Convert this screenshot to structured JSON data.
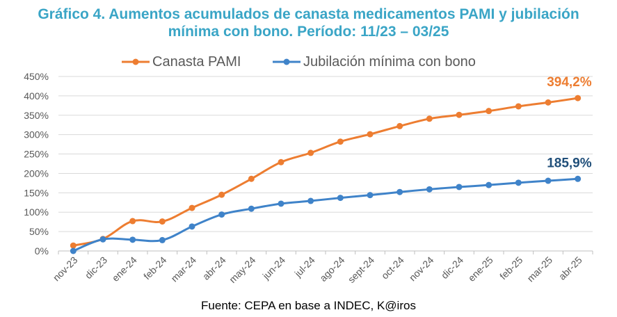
{
  "title_line1": "Gráfico 4. Aumentos acumulados de canasta medicamentos PAMI y jubilación",
  "title_line2": "mínima con bono. Período: 11/23 – 03/25",
  "source": "Fuente: CEPA en base a INDEC, K@iros",
  "colors": {
    "title": "#3AA5C6",
    "pami": "#ED7D31",
    "jubilacion": "#3F83C9",
    "jub_label": "#1F4E79",
    "axis_text": "#595959",
    "grid": "#D9D9D9"
  },
  "chart_data": {
    "type": "line",
    "categories": [
      "nov-23",
      "dic-23",
      "ene-24",
      "feb-24",
      "mar-24",
      "abr-24",
      "may-24",
      "jun-24",
      "jul-24",
      "ago-24",
      "sept-24",
      "oct-24",
      "nov-24",
      "dic-24",
      "ene-25",
      "feb-25",
      "mar-25",
      "abr-25"
    ],
    "ylim": [
      0,
      450
    ],
    "yticks": [
      "0%",
      "50%",
      "100%",
      "150%",
      "200%",
      "250%",
      "300%",
      "350%",
      "400%",
      "450%"
    ],
    "grid": true,
    "legend_position": "top",
    "series": [
      {
        "name": "Canasta PAMI",
        "color": "#ED7D31",
        "values": [
          14,
          31,
          77,
          76,
          111,
          145,
          186,
          229,
          253,
          282,
          301,
          322,
          341,
          351,
          361,
          373,
          383,
          394.2
        ],
        "end_label": "394,2%"
      },
      {
        "name": "Jubilación mínima con bono",
        "color": "#3F83C9",
        "values": [
          0,
          30,
          29,
          28,
          63,
          94,
          109,
          122,
          129,
          137,
          144,
          152,
          159,
          165,
          170,
          176,
          181,
          185.9
        ],
        "end_label": "185,9%"
      }
    ]
  }
}
